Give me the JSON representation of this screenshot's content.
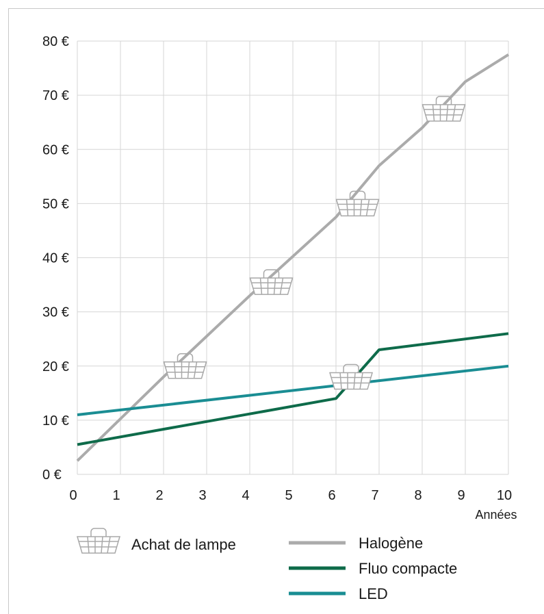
{
  "chart_data": {
    "type": "line",
    "x_unit_label": "Années",
    "x_ticks": [
      "0",
      "1",
      "2",
      "3",
      "4",
      "5",
      "6",
      "7",
      "8",
      "9",
      "10"
    ],
    "y_ticks": [
      "0 €",
      "10 €",
      "20 €",
      "30 €",
      "40 €",
      "50 €",
      "60 €",
      "70 €",
      "80 €"
    ],
    "xlim": [
      0,
      10
    ],
    "ylim": [
      0,
      80
    ],
    "grid": true,
    "series": [
      {
        "name": "Halogène",
        "color": "#ababab",
        "points": [
          [
            0,
            2.5
          ],
          [
            2,
            18
          ],
          [
            4,
            33
          ],
          [
            6,
            47.5
          ],
          [
            7,
            57
          ],
          [
            8,
            64
          ],
          [
            9,
            72.5
          ],
          [
            10,
            77.5
          ]
        ]
      },
      {
        "name": "Fluo compacte",
        "color": "#0e6b4a",
        "points": [
          [
            0,
            5.5
          ],
          [
            6,
            14
          ],
          [
            7,
            23
          ],
          [
            10,
            26
          ]
        ]
      },
      {
        "name": "LED",
        "color": "#1a8d93",
        "points": [
          [
            0,
            11
          ],
          [
            10,
            20
          ]
        ]
      }
    ],
    "purchase_markers": [
      [
        2.5,
        19.5
      ],
      [
        4.5,
        35
      ],
      [
        6.5,
        49.5
      ],
      [
        6.35,
        17.5
      ],
      [
        8.5,
        67
      ]
    ],
    "legend": {
      "marker_label": "Achat de lampe",
      "placement": "bottom"
    }
  }
}
